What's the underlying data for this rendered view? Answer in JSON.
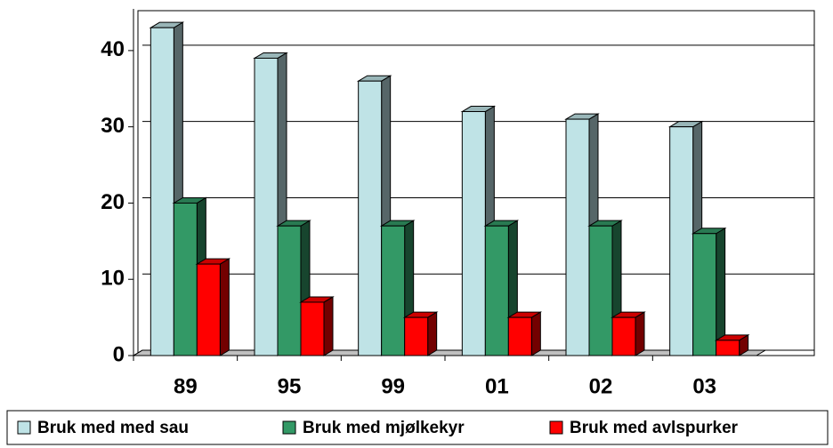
{
  "chart_data": {
    "type": "bar3d",
    "categories": [
      "89",
      "95",
      "99",
      "01",
      "02",
      "03"
    ],
    "series": [
      {
        "name": "Bruk med med sau",
        "color": "#bfe3e6",
        "values": [
          43,
          39,
          36,
          32,
          31,
          30
        ]
      },
      {
        "name": "Bruk med mjølkekyr",
        "color": "#339966",
        "values": [
          20,
          17,
          17,
          17,
          17,
          16
        ]
      },
      {
        "name": "Bruk med avlspurker",
        "color": "#ff0000",
        "values": [
          12,
          7,
          5,
          5,
          5,
          2
        ]
      }
    ],
    "ylim": [
      0,
      45
    ],
    "yticks": [
      0,
      10,
      20,
      30,
      40
    ],
    "grid": true,
    "legend": "bottom"
  }
}
